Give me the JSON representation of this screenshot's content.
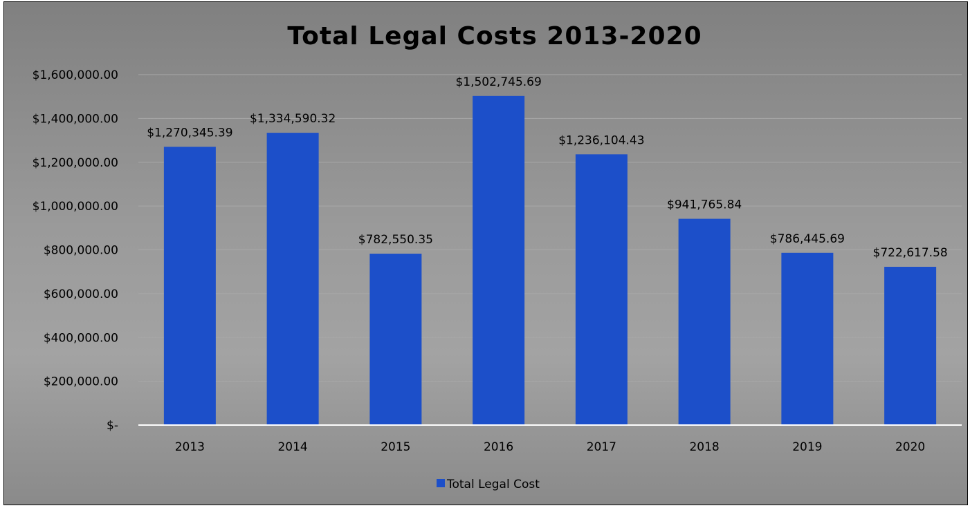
{
  "chart_data": {
    "type": "bar",
    "title": "Total Legal Costs 2013-2020",
    "xlabel": "",
    "ylabel": "",
    "categories": [
      "2013",
      "2014",
      "2015",
      "2016",
      "2017",
      "2018",
      "2019",
      "2020"
    ],
    "series": [
      {
        "name": "Total Legal Cost",
        "color": "#1c4fc9",
        "values": [
          1270345.39,
          1334590.32,
          782550.35,
          1502745.69,
          1236104.43,
          941765.84,
          786445.69,
          722617.58
        ],
        "labels": [
          "$1,270,345.39",
          "$1,334,590.32",
          "$782,550.35",
          "$1,502,745.69",
          "$1,236,104.43",
          "$941,765.84",
          "$786,445.69",
          "$722,617.58"
        ]
      }
    ],
    "ylim": [
      0,
      1600000
    ],
    "y_ticks": [
      0,
      200000,
      400000,
      600000,
      800000,
      1000000,
      1200000,
      1400000,
      1600000
    ],
    "y_tick_labels": [
      "$-",
      "$200,000.00",
      "$400,000.00",
      "$600,000.00",
      "$800,000.00",
      "$1,000,000.00",
      "$1,200,000.00",
      "$1,400,000.00",
      "$1,600,000.00"
    ],
    "grid": true,
    "legend_position": "bottom",
    "background_color": "#999999",
    "gridline_color": "#a8a8a8",
    "axis_color": "#ffffff"
  }
}
